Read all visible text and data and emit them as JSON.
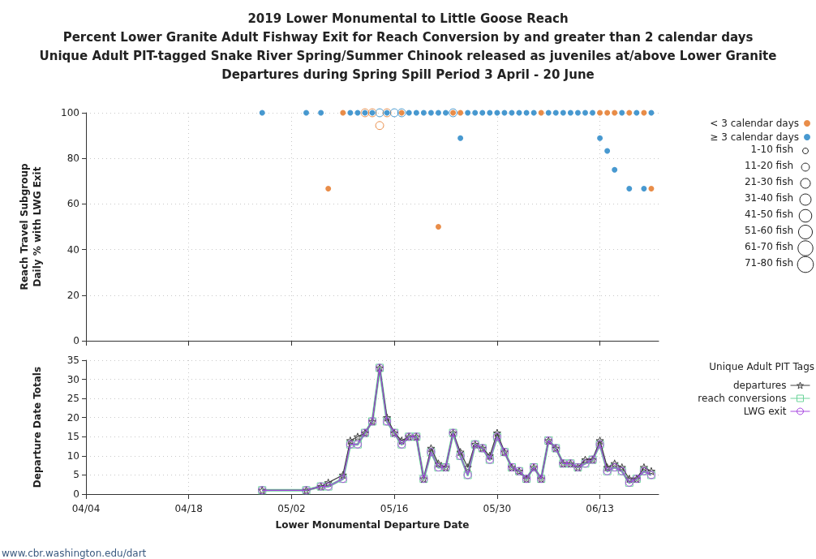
{
  "chart_data": [
    {
      "type": "bubble",
      "title": "2019 Lower Monumental to Little Goose Reach\nPercent Lower Granite Adult Fishway Exit for Reach Conversion by and greater than 2 calendar days\nUnique Adult PIT-tagged Snake River Spring/Summer Chinook released as juveniles at/above Lower Granite\nDepartures during Spring Spill Period 3 April - 20 June",
      "ylabel": "Reach Travel Subgroup\nDaily % with LWG Exit",
      "series": [
        {
          "name": "< 3 calendar days",
          "color": "#e3701c",
          "x": [
            "2019-05-07",
            "2019-05-09",
            "2019-05-12",
            "2019-05-13",
            "2019-05-14",
            "2019-05-15",
            "2019-05-17",
            "2019-05-22",
            "2019-05-24",
            "2019-05-25",
            "2019-06-05",
            "2019-06-13",
            "2019-06-14",
            "2019-06-15",
            "2019-06-17",
            "2019-06-19",
            "2019-06-20"
          ],
          "values": [
            66.7,
            100,
            100,
            100,
            94.4,
            100,
            100,
            50,
            100,
            100,
            100,
            100,
            100,
            100,
            100,
            100,
            66.7
          ],
          "sizes": [
            10,
            10,
            20,
            20,
            20,
            20,
            10,
            10,
            10,
            10,
            10,
            10,
            10,
            10,
            10,
            10,
            10
          ]
        },
        {
          "name": "≥ 3 calendar days",
          "color": "#1a80c4",
          "x": [
            "2019-04-28",
            "2019-05-04",
            "2019-05-06",
            "2019-05-10",
            "2019-05-11",
            "2019-05-12",
            "2019-05-13",
            "2019-05-14",
            "2019-05-15",
            "2019-05-16",
            "2019-05-17",
            "2019-05-18",
            "2019-05-19",
            "2019-05-20",
            "2019-05-21",
            "2019-05-22",
            "2019-05-23",
            "2019-05-24",
            "2019-05-25",
            "2019-05-26",
            "2019-05-27",
            "2019-05-28",
            "2019-05-29",
            "2019-05-30",
            "2019-05-31",
            "2019-06-01",
            "2019-06-02",
            "2019-06-03",
            "2019-06-04",
            "2019-06-06",
            "2019-06-07",
            "2019-06-08",
            "2019-06-09",
            "2019-06-10",
            "2019-06-11",
            "2019-06-12",
            "2019-06-13",
            "2019-06-14",
            "2019-06-15",
            "2019-06-16",
            "2019-06-17",
            "2019-06-18",
            "2019-06-19",
            "2019-06-20"
          ],
          "values": [
            100,
            100,
            100,
            100,
            100,
            100,
            100,
            100,
            100,
            100,
            100,
            100,
            100,
            100,
            100,
            100,
            100,
            100,
            88.9,
            100,
            100,
            100,
            100,
            100,
            100,
            100,
            100,
            100,
            100,
            100,
            100,
            100,
            100,
            100,
            100,
            100,
            88.9,
            83.3,
            75,
            100,
            66.7,
            100,
            66.7,
            100
          ],
          "sizes": [
            10,
            10,
            10,
            10,
            10,
            10,
            10,
            20,
            10,
            20,
            20,
            10,
            10,
            10,
            10,
            10,
            10,
            20,
            10,
            10,
            10,
            10,
            10,
            10,
            10,
            10,
            10,
            10,
            10,
            10,
            10,
            10,
            10,
            10,
            10,
            10,
            10,
            10,
            10,
            10,
            10,
            10,
            10,
            10
          ]
        }
      ],
      "size_legend": [
        {
          "value": 10,
          "label": "1-10 fish"
        },
        {
          "value": 20,
          "label": "11-20 fish"
        },
        {
          "value": 30,
          "label": "21-30 fish"
        },
        {
          "value": 40,
          "label": "31-40 fish"
        },
        {
          "value": 50,
          "label": "41-50 fish"
        },
        {
          "value": 60,
          "label": "51-60 fish"
        },
        {
          "value": 70,
          "label": "61-70 fish"
        },
        {
          "value": 80,
          "label": "71-80 fish"
        }
      ],
      "xlim": [
        "2019-04-04",
        "2019-06-21"
      ],
      "xticks": [
        {
          "value": "2019-04-04",
          "label": null
        },
        {
          "value": "2019-04-18",
          "label": null
        },
        {
          "value": "2019-05-02",
          "label": null
        },
        {
          "value": "2019-05-16",
          "label": null
        },
        {
          "value": "2019-05-30",
          "label": null
        },
        {
          "value": "2019-06-13",
          "label": null
        }
      ],
      "ylim": [
        0,
        100
      ],
      "yticks": [
        0,
        20,
        40,
        60,
        80,
        100
      ],
      "tick_labels": "y",
      "grid": true,
      "legend": "right"
    },
    {
      "type": "line",
      "xlabel": "Lower Monumental Departure Date",
      "ylabel": "Departure Date Totals",
      "legend_title": "Unique Adult PIT Tags",
      "annotations": [
        "www.cbr.washington.edu/dart"
      ],
      "x": [
        "2019-04-28",
        "2019-05-04",
        "2019-05-06",
        "2019-05-07",
        "2019-05-09",
        "2019-05-10",
        "2019-05-11",
        "2019-05-12",
        "2019-05-13",
        "2019-05-14",
        "2019-05-15",
        "2019-05-16",
        "2019-05-17",
        "2019-05-18",
        "2019-05-19",
        "2019-05-20",
        "2019-05-21",
        "2019-05-22",
        "2019-05-23",
        "2019-05-24",
        "2019-05-25",
        "2019-05-26",
        "2019-05-27",
        "2019-05-28",
        "2019-05-29",
        "2019-05-30",
        "2019-05-31",
        "2019-06-01",
        "2019-06-02",
        "2019-06-03",
        "2019-06-04",
        "2019-06-05",
        "2019-06-06",
        "2019-06-07",
        "2019-06-08",
        "2019-06-09",
        "2019-06-10",
        "2019-06-11",
        "2019-06-12",
        "2019-06-13",
        "2019-06-14",
        "2019-06-15",
        "2019-06-16",
        "2019-06-17",
        "2019-06-18",
        "2019-06-19",
        "2019-06-20"
      ],
      "series": [
        {
          "name": "departures",
          "color": "#404040",
          "marker": "star",
          "values": [
            1,
            1,
            2,
            3,
            5,
            14,
            15,
            16,
            19,
            33,
            20,
            16,
            14,
            15,
            15,
            4,
            12,
            8,
            7,
            16,
            11,
            7,
            13,
            12,
            10,
            16,
            11,
            7,
            6,
            4,
            7,
            4,
            14,
            12,
            8,
            8,
            7,
            9,
            9,
            14,
            7,
            8,
            7,
            4,
            4,
            7,
            6
          ]
        },
        {
          "name": "reach conversions",
          "color": "#6cd49a",
          "marker": "square",
          "values": [
            1,
            1,
            2,
            2,
            4,
            13,
            13,
            16,
            19,
            33,
            19,
            16,
            13,
            15,
            15,
            4,
            11,
            7,
            7,
            16,
            10,
            5,
            13,
            12,
            9,
            15,
            11,
            7,
            6,
            4,
            7,
            4,
            14,
            12,
            8,
            8,
            7,
            8,
            9,
            13,
            6,
            7,
            6,
            3,
            4,
            6,
            5
          ]
        },
        {
          "name": "LWG exit",
          "color": "#a848e0",
          "marker": "circle",
          "values": [
            1,
            1,
            2,
            2,
            4,
            13,
            13,
            16,
            19,
            33,
            19,
            16,
            13,
            15,
            15,
            4,
            11,
            7,
            7,
            16,
            10,
            5,
            13,
            12,
            9,
            15,
            11,
            7,
            6,
            4,
            7,
            4,
            14,
            12,
            8,
            8,
            7,
            8,
            9,
            13,
            6,
            7,
            6,
            3,
            4,
            6,
            5
          ]
        }
      ],
      "xlim": [
        "2019-04-04",
        "2019-06-21"
      ],
      "xticks": [
        {
          "value": "2019-04-04",
          "label": "04/04"
        },
        {
          "value": "2019-04-18",
          "label": "04/18"
        },
        {
          "value": "2019-05-02",
          "label": "05/02"
        },
        {
          "value": "2019-05-16",
          "label": "05/16"
        },
        {
          "value": "2019-05-30",
          "label": "05/30"
        },
        {
          "value": "2019-06-13",
          "label": "06/13"
        }
      ],
      "ylim": [
        0,
        35
      ],
      "yticks": [
        0,
        5,
        10,
        15,
        20,
        25,
        30,
        35
      ],
      "grid": true,
      "legend": "right"
    }
  ]
}
